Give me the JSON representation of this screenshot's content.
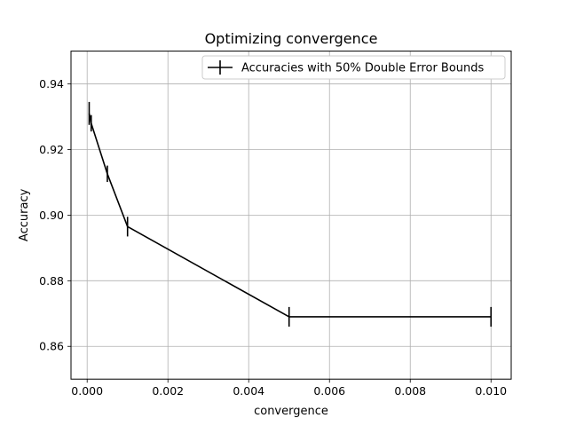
{
  "chart_data": {
    "type": "line",
    "title": "Optimizing convergence",
    "xlabel": "convergence",
    "ylabel": "Accuracy",
    "xlim": [
      -0.0004,
      0.0105
    ],
    "ylim": [
      0.85,
      0.95
    ],
    "xticks": [
      "0.000",
      "0.002",
      "0.004",
      "0.006",
      "0.008",
      "0.010"
    ],
    "yticks": [
      "0.86",
      "0.88",
      "0.90",
      "0.92",
      "0.94"
    ],
    "grid": true,
    "legend_position": "top-right",
    "series": [
      {
        "name": "Accuracies with 50% Double Error Bounds",
        "color": "#000000",
        "x": [
          5e-05,
          0.0001,
          0.0005,
          0.001,
          0.005,
          0.01
        ],
        "y": [
          0.931,
          0.928,
          0.9126,
          0.8965,
          0.869,
          0.869
        ],
        "err": [
          0.0035,
          0.0025,
          0.0025,
          0.003,
          0.003,
          0.003
        ]
      }
    ]
  }
}
